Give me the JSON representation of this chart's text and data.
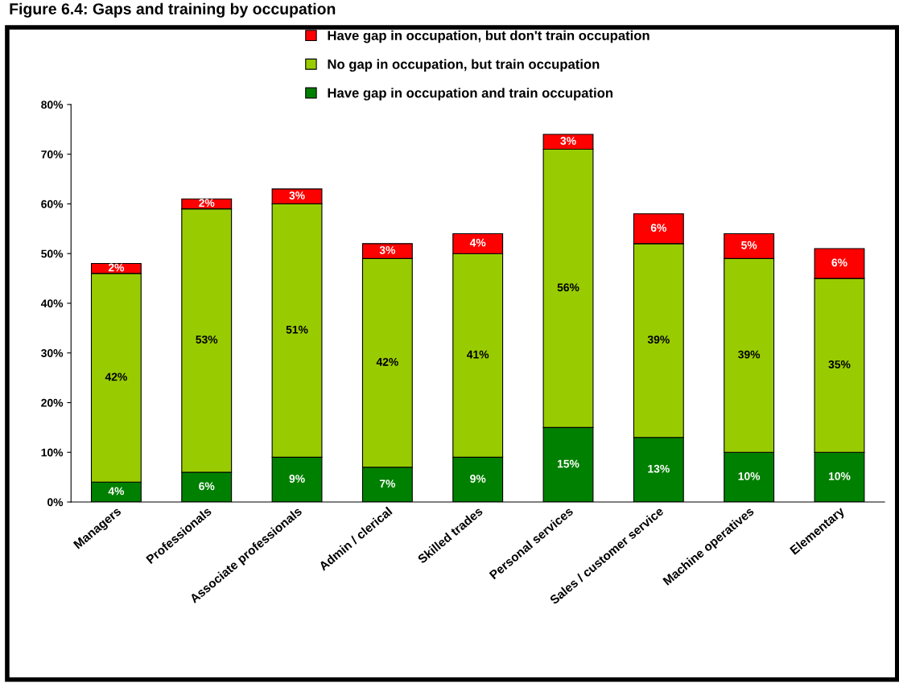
{
  "chart_data": {
    "type": "bar",
    "title": "Figure 6.4: Gaps and training by occupation",
    "stacked": true,
    "categories": [
      "Managers",
      "Professionals",
      "Associate professionals",
      "Admin / clerical",
      "Skilled trades",
      "Personal services",
      "Sales / customer service",
      "Machine operatives",
      "Elementary"
    ],
    "series": [
      {
        "name": "Have gap in occupation and train occupation",
        "color": "#008000",
        "values": [
          4,
          6,
          9,
          7,
          9,
          15,
          13,
          10,
          10
        ],
        "value_labels": [
          "4%",
          "6%",
          "9%",
          "7%",
          "9%",
          "15%",
          "13%",
          "10%",
          "10%"
        ]
      },
      {
        "name": "No gap in occupation, but train occupation",
        "color": "#99cc00",
        "values": [
          42,
          53,
          51,
          42,
          41,
          56,
          39,
          39,
          35
        ],
        "value_labels": [
          "42%",
          "53%",
          "51%",
          "42%",
          "41%",
          "56%",
          "39%",
          "39%",
          "35%"
        ]
      },
      {
        "name": "Have gap in occupation, but don't train occupation",
        "color": "#ff0000",
        "values": [
          2,
          2,
          3,
          3,
          4,
          3,
          6,
          5,
          6
        ],
        "value_labels": [
          "2%",
          "2%",
          "3%",
          "3%",
          "4%",
          "3%",
          "6%",
          "5%",
          "6%"
        ]
      }
    ],
    "ylim": [
      0,
      80
    ],
    "yticks": [
      {
        "value": 0,
        "label": "0%"
      },
      {
        "value": 10,
        "label": "10%"
      },
      {
        "value": 20,
        "label": "20%"
      },
      {
        "value": 30,
        "label": "30%"
      },
      {
        "value": 40,
        "label": "40%"
      },
      {
        "value": 50,
        "label": "50%"
      },
      {
        "value": 60,
        "label": "60%"
      },
      {
        "value": 70,
        "label": "70%"
      },
      {
        "value": 80,
        "label": "80%"
      }
    ],
    "grid": false,
    "legend": "top"
  }
}
